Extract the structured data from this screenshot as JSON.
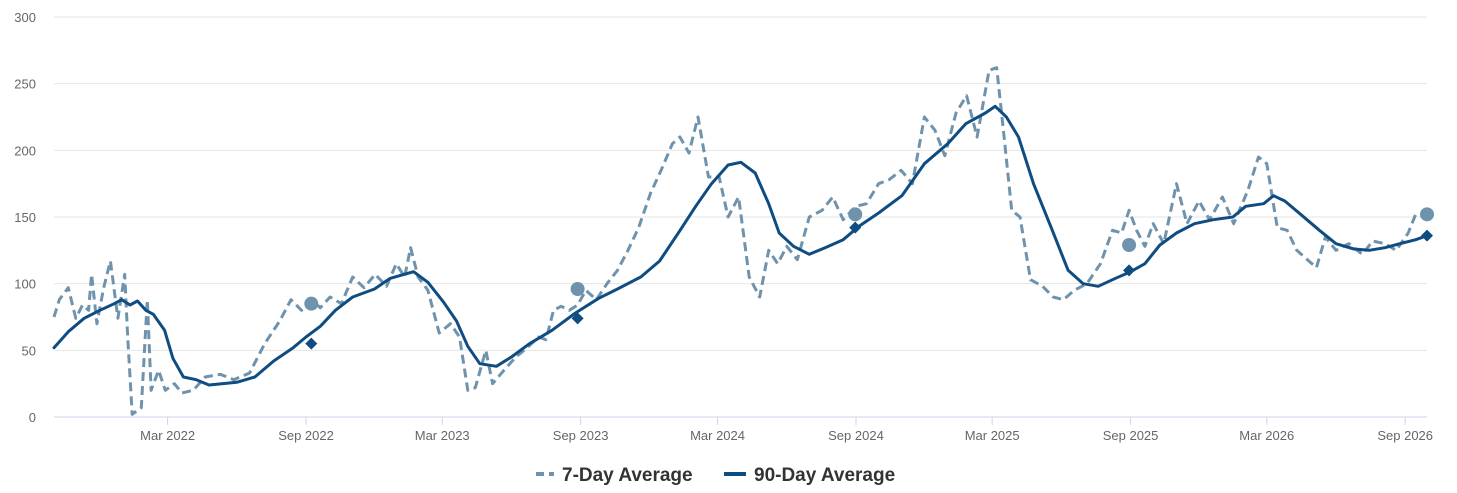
{
  "chart_data": {
    "type": "line",
    "title": "",
    "xlabel": "",
    "ylabel": "",
    "ylim": [
      0,
      300
    ],
    "yticks": [
      0,
      50,
      100,
      150,
      200,
      250,
      300
    ],
    "xlim": [
      "2021-10-01",
      "2026-09-30"
    ],
    "xticks": [
      {
        "date": "2022-03-01",
        "label": "Mar 2022"
      },
      {
        "date": "2022-09-01",
        "label": "Sep 2022"
      },
      {
        "date": "2023-03-01",
        "label": "Mar 2023"
      },
      {
        "date": "2023-09-01",
        "label": "Sep 2023"
      },
      {
        "date": "2024-03-01",
        "label": "Mar 2024"
      },
      {
        "date": "2024-09-01",
        "label": "Sep 2024"
      },
      {
        "date": "2025-03-01",
        "label": "Mar 2025"
      },
      {
        "date": "2025-09-01",
        "label": "Sep 2025"
      },
      {
        "date": "2026-03-01",
        "label": "Mar 2026"
      },
      {
        "date": "2026-09-01",
        "label": "Sep 2026"
      }
    ],
    "grid": true,
    "legend_position": "bottom-center",
    "series": [
      {
        "name": "7-Day Average",
        "color": "#6f93ad",
        "style": "dashed",
        "points": [
          [
            "2021-10-01",
            75
          ],
          [
            "2021-10-08",
            88
          ],
          [
            "2021-10-20",
            97
          ],
          [
            "2021-10-30",
            74
          ],
          [
            "2021-11-08",
            84
          ],
          [
            "2021-11-16",
            80
          ],
          [
            "2021-11-20",
            107
          ],
          [
            "2021-11-27",
            70
          ],
          [
            "2021-12-06",
            97
          ],
          [
            "2021-12-15",
            117
          ],
          [
            "2021-12-25",
            74
          ],
          [
            "2022-01-03",
            107
          ],
          [
            "2022-01-07",
            60
          ],
          [
            "2022-01-13",
            2
          ],
          [
            "2022-01-25",
            7
          ],
          [
            "2022-02-02",
            88
          ],
          [
            "2022-02-07",
            20
          ],
          [
            "2022-02-17",
            35
          ],
          [
            "2022-02-26",
            20
          ],
          [
            "2022-03-10",
            25
          ],
          [
            "2022-03-20",
            18
          ],
          [
            "2022-04-04",
            20
          ],
          [
            "2022-04-20",
            30
          ],
          [
            "2022-05-10",
            32
          ],
          [
            "2022-05-28",
            28
          ],
          [
            "2022-06-18",
            33
          ],
          [
            "2022-07-08",
            55
          ],
          [
            "2022-07-28",
            72
          ],
          [
            "2022-08-12",
            88
          ],
          [
            "2022-08-26",
            80
          ],
          [
            "2022-09-08",
            88
          ],
          [
            "2022-09-20",
            82
          ],
          [
            "2022-10-03",
            90
          ],
          [
            "2022-10-18",
            85
          ],
          [
            "2022-11-02",
            105
          ],
          [
            "2022-11-17",
            97
          ],
          [
            "2022-12-02",
            107
          ],
          [
            "2022-12-17",
            98
          ],
          [
            "2022-12-30",
            115
          ],
          [
            "2023-01-10",
            105
          ],
          [
            "2023-01-18",
            127
          ],
          [
            "2023-01-28",
            105
          ],
          [
            "2023-02-10",
            95
          ],
          [
            "2023-02-25",
            63
          ],
          [
            "2023-03-12",
            70
          ],
          [
            "2023-03-24",
            60
          ],
          [
            "2023-04-04",
            20
          ],
          [
            "2023-04-14",
            22
          ],
          [
            "2023-04-28",
            50
          ],
          [
            "2023-05-07",
            25
          ],
          [
            "2023-05-22",
            35
          ],
          [
            "2023-06-07",
            45
          ],
          [
            "2023-06-22",
            52
          ],
          [
            "2023-07-07",
            60
          ],
          [
            "2023-07-17",
            58
          ],
          [
            "2023-07-27",
            80
          ],
          [
            "2023-08-06",
            83
          ],
          [
            "2023-08-17",
            80
          ],
          [
            "2023-08-28",
            84
          ],
          [
            "2023-09-08",
            95
          ],
          [
            "2023-09-22",
            88
          ],
          [
            "2023-10-06",
            100
          ],
          [
            "2023-10-20",
            110
          ],
          [
            "2023-11-03",
            125
          ],
          [
            "2023-11-17",
            142
          ],
          [
            "2023-12-03",
            168
          ],
          [
            "2023-12-17",
            185
          ],
          [
            "2024-01-01",
            205
          ],
          [
            "2024-01-11",
            210
          ],
          [
            "2024-01-23",
            198
          ],
          [
            "2024-02-04",
            225
          ],
          [
            "2024-02-18",
            180
          ],
          [
            "2024-03-03",
            180
          ],
          [
            "2024-03-15",
            150
          ],
          [
            "2024-03-29",
            165
          ],
          [
            "2024-04-12",
            105
          ],
          [
            "2024-04-26",
            90
          ],
          [
            "2024-05-08",
            125
          ],
          [
            "2024-05-20",
            115
          ],
          [
            "2024-06-01",
            128
          ],
          [
            "2024-06-15",
            118
          ],
          [
            "2024-07-01",
            150
          ],
          [
            "2024-07-18",
            155
          ],
          [
            "2024-08-01",
            165
          ],
          [
            "2024-08-15",
            148
          ],
          [
            "2024-09-01",
            158
          ],
          [
            "2024-09-15",
            160
          ],
          [
            "2024-10-01",
            175
          ],
          [
            "2024-10-15",
            178
          ],
          [
            "2024-10-31",
            185
          ],
          [
            "2024-11-15",
            175
          ],
          [
            "2024-12-01",
            225
          ],
          [
            "2024-12-15",
            215
          ],
          [
            "2024-12-28",
            196
          ],
          [
            "2025-01-12",
            228
          ],
          [
            "2025-01-26",
            241
          ],
          [
            "2025-02-09",
            210
          ],
          [
            "2025-02-25",
            260
          ],
          [
            "2025-03-07",
            262
          ],
          [
            "2025-03-16",
            215
          ],
          [
            "2025-03-27",
            155
          ],
          [
            "2025-04-07",
            150
          ],
          [
            "2025-04-21",
            103
          ],
          [
            "2025-05-07",
            98
          ],
          [
            "2025-05-21",
            90
          ],
          [
            "2025-06-04",
            88
          ],
          [
            "2025-06-18",
            95
          ],
          [
            "2025-07-05",
            100
          ],
          [
            "2025-07-23",
            115
          ],
          [
            "2025-08-08",
            140
          ],
          [
            "2025-08-20",
            138
          ],
          [
            "2025-08-30",
            155
          ],
          [
            "2025-09-09",
            140
          ],
          [
            "2025-09-20",
            128
          ],
          [
            "2025-10-01",
            145
          ],
          [
            "2025-10-15",
            130
          ],
          [
            "2025-11-01",
            175
          ],
          [
            "2025-11-15",
            145
          ],
          [
            "2025-12-01",
            162
          ],
          [
            "2025-12-15",
            148
          ],
          [
            "2026-01-01",
            165
          ],
          [
            "2026-01-16",
            145
          ],
          [
            "2026-02-04",
            170
          ],
          [
            "2026-02-18",
            195
          ],
          [
            "2026-03-01",
            190
          ],
          [
            "2026-03-15",
            142
          ],
          [
            "2026-03-28",
            140
          ],
          [
            "2026-04-10",
            125
          ],
          [
            "2026-04-24",
            118
          ],
          [
            "2026-05-06",
            112
          ],
          [
            "2026-05-18",
            135
          ],
          [
            "2026-06-01",
            125
          ],
          [
            "2026-06-18",
            130
          ],
          [
            "2026-07-06",
            122
          ],
          [
            "2026-07-20",
            132
          ],
          [
            "2026-08-05",
            130
          ],
          [
            "2026-08-20",
            125
          ],
          [
            "2026-09-05",
            138
          ],
          [
            "2026-09-15",
            152
          ]
        ]
      },
      {
        "name": "90-Day Average",
        "color": "#0f4c81",
        "style": "solid",
        "points": [
          [
            "2021-10-01",
            52
          ],
          [
            "2021-10-20",
            64
          ],
          [
            "2021-11-10",
            74
          ],
          [
            "2021-12-01",
            80
          ],
          [
            "2021-12-20",
            85
          ],
          [
            "2021-12-30",
            88
          ],
          [
            "2022-01-10",
            84
          ],
          [
            "2022-01-20",
            87
          ],
          [
            "2022-01-31",
            80
          ],
          [
            "2022-02-10",
            77
          ],
          [
            "2022-02-25",
            65
          ],
          [
            "2022-03-08",
            44
          ],
          [
            "2022-03-22",
            30
          ],
          [
            "2022-04-08",
            28
          ],
          [
            "2022-04-25",
            24
          ],
          [
            "2022-05-12",
            25
          ],
          [
            "2022-06-01",
            26
          ],
          [
            "2022-06-25",
            30
          ],
          [
            "2022-07-20",
            42
          ],
          [
            "2022-08-15",
            52
          ],
          [
            "2022-09-01",
            60
          ],
          [
            "2022-09-20",
            68
          ],
          [
            "2022-10-10",
            80
          ],
          [
            "2022-11-02",
            90
          ],
          [
            "2022-12-01",
            96
          ],
          [
            "2022-12-22",
            104
          ],
          [
            "2023-01-22",
            109
          ],
          [
            "2023-02-10",
            101
          ],
          [
            "2023-03-03",
            86
          ],
          [
            "2023-03-20",
            72
          ],
          [
            "2023-04-04",
            53
          ],
          [
            "2023-04-20",
            40
          ],
          [
            "2023-05-12",
            38
          ],
          [
            "2023-06-01",
            45
          ],
          [
            "2023-06-25",
            55
          ],
          [
            "2023-07-25",
            65
          ],
          [
            "2023-08-25",
            78
          ],
          [
            "2023-09-25",
            89
          ],
          [
            "2023-10-20",
            96
          ],
          [
            "2023-11-20",
            105
          ],
          [
            "2023-12-15",
            117
          ],
          [
            "2024-01-10",
            139
          ],
          [
            "2024-02-01",
            158
          ],
          [
            "2024-02-22",
            175
          ],
          [
            "2024-03-15",
            189
          ],
          [
            "2024-04-01",
            191
          ],
          [
            "2024-04-20",
            183
          ],
          [
            "2024-05-08",
            160
          ],
          [
            "2024-05-22",
            138
          ],
          [
            "2024-06-10",
            128
          ],
          [
            "2024-07-01",
            122
          ],
          [
            "2024-07-22",
            127
          ],
          [
            "2024-08-15",
            133
          ],
          [
            "2024-09-05",
            143
          ],
          [
            "2024-10-01",
            153
          ],
          [
            "2024-11-01",
            166
          ],
          [
            "2024-12-01",
            190
          ],
          [
            "2025-01-01",
            205
          ],
          [
            "2025-01-25",
            220
          ],
          [
            "2025-02-20",
            228
          ],
          [
            "2025-03-05",
            233
          ],
          [
            "2025-03-20",
            225
          ],
          [
            "2025-04-05",
            210
          ],
          [
            "2025-04-25",
            175
          ],
          [
            "2025-05-20",
            140
          ],
          [
            "2025-06-10",
            110
          ],
          [
            "2025-06-30",
            100
          ],
          [
            "2025-07-20",
            98
          ],
          [
            "2025-08-12",
            104
          ],
          [
            "2025-09-01",
            109
          ],
          [
            "2025-09-20",
            115
          ],
          [
            "2025-10-10",
            129
          ],
          [
            "2025-11-01",
            138
          ],
          [
            "2025-11-25",
            145
          ],
          [
            "2025-12-20",
            148
          ],
          [
            "2026-01-15",
            150
          ],
          [
            "2026-02-01",
            158
          ],
          [
            "2026-02-25",
            160
          ],
          [
            "2026-03-10",
            166
          ],
          [
            "2026-03-25",
            162
          ],
          [
            "2026-04-15",
            152
          ],
          [
            "2026-05-10",
            140
          ],
          [
            "2026-06-01",
            130
          ],
          [
            "2026-06-25",
            126
          ],
          [
            "2026-07-15",
            125
          ],
          [
            "2026-08-05",
            127
          ],
          [
            "2026-08-25",
            130
          ],
          [
            "2026-09-15",
            133
          ],
          [
            "2026-09-30",
            136
          ]
        ]
      }
    ],
    "markers": [
      {
        "series": "7-Day Average",
        "shape": "circle",
        "color": "#6f93ad",
        "points": [
          [
            "2022-09-08",
            85
          ],
          [
            "2023-08-28",
            96
          ],
          [
            "2024-08-31",
            152
          ],
          [
            "2025-08-30",
            129
          ],
          [
            "2026-09-30",
            152
          ]
        ]
      },
      {
        "series": "90-Day Average",
        "shape": "diamond",
        "color": "#0f4c81",
        "points": [
          [
            "2022-09-08",
            55
          ],
          [
            "2023-08-28",
            74
          ],
          [
            "2024-08-31",
            142
          ],
          [
            "2025-08-30",
            110
          ],
          [
            "2026-09-30",
            136
          ]
        ]
      }
    ]
  }
}
